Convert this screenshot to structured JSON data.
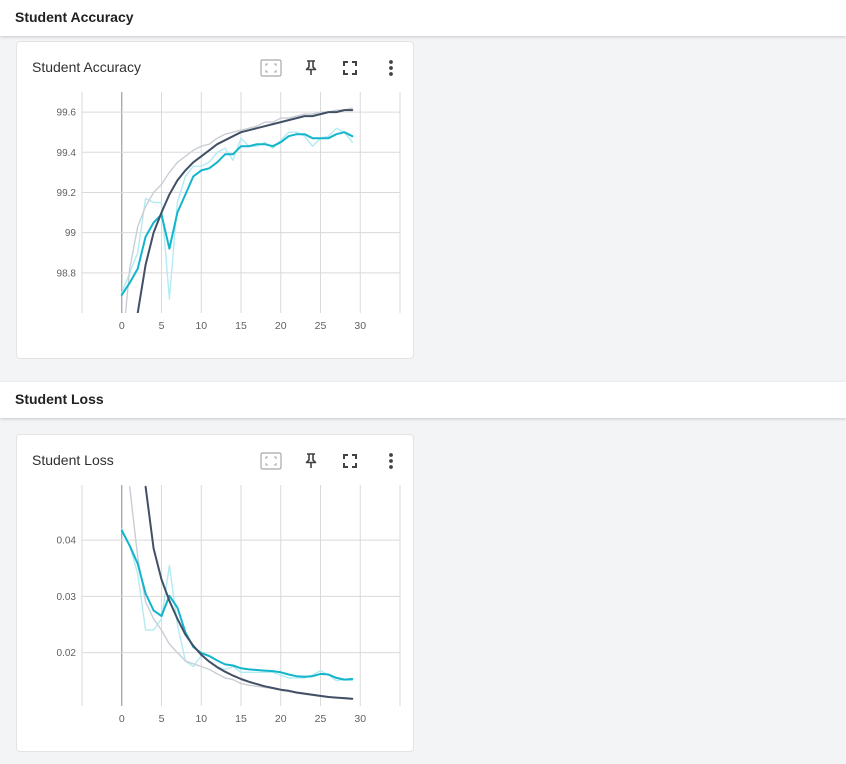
{
  "sections": [
    {
      "title": "Student Accuracy",
      "card": {
        "title": "Student Accuracy",
        "tools": {
          "fit_icon": "fit-domain-icon",
          "pin_icon": "pin-icon",
          "fullscreen_icon": "fullscreen-icon",
          "more_icon": "more-vert-icon"
        }
      }
    },
    {
      "title": "Student Loss",
      "card": {
        "title": "Student Loss",
        "tools": {
          "fit_icon": "fit-domain-icon",
          "pin_icon": "pin-icon",
          "fullscreen_icon": "fullscreen-icon",
          "more_icon": "more-vert-icon"
        }
      }
    }
  ],
  "colors": {
    "teal": "#12b5cb",
    "teal_raw": "#b2ebf2",
    "navy": "#425066",
    "navy_raw": "#c9ced6",
    "grid": "#dadada",
    "zero_axis": "#9e9e9e"
  },
  "chart_data": [
    {
      "type": "line",
      "title": "Student Accuracy",
      "xlabel": "",
      "ylabel": "",
      "x_ticks": [
        0,
        5,
        10,
        15,
        20,
        25,
        30
      ],
      "y_ticks": [
        98.8,
        99,
        99.2,
        99.4,
        99.6
      ],
      "y_tick_labels": [
        "98.8",
        "99",
        "99.2",
        "99.4",
        "99.6"
      ],
      "xlim": [
        -5,
        35
      ],
      "ylim": [
        98.6,
        99.7
      ],
      "grid": true,
      "series": [
        {
          "color": "#b2ebf2",
          "role": "raw",
          "x": [
            0,
            1,
            2,
            3,
            4,
            5,
            6,
            7,
            8,
            9,
            10,
            11,
            12,
            13,
            14,
            15,
            16,
            17,
            18,
            19,
            20,
            21,
            22,
            23,
            24,
            25,
            26,
            27,
            28,
            29
          ],
          "y": [
            98.7,
            98.8,
            98.9,
            99.17,
            99.15,
            99.15,
            98.67,
            99.15,
            99.28,
            99.33,
            99.33,
            99.35,
            99.4,
            99.42,
            99.36,
            99.47,
            99.43,
            99.43,
            99.45,
            99.42,
            99.46,
            99.5,
            99.5,
            99.48,
            99.43,
            99.47,
            99.48,
            99.52,
            99.5,
            99.45
          ]
        },
        {
          "color": "#c9ced6",
          "role": "raw",
          "x": [
            0,
            1,
            2,
            3,
            4,
            5,
            6,
            7,
            8,
            9,
            10,
            11,
            12,
            13,
            14,
            15,
            16,
            17,
            18,
            19,
            20,
            21,
            22,
            23,
            24,
            25,
            26,
            27,
            28,
            29
          ],
          "y": [
            98.4,
            98.82,
            99.03,
            99.13,
            99.2,
            99.24,
            99.3,
            99.35,
            99.38,
            99.41,
            99.43,
            99.44,
            99.47,
            99.49,
            99.5,
            99.51,
            99.52,
            99.53,
            99.55,
            99.55,
            99.57,
            99.57,
            99.58,
            99.59,
            99.59,
            99.6,
            99.6,
            99.61,
            99.61,
            99.62
          ]
        },
        {
          "color": "#12b5cb",
          "role": "smoothed",
          "x": [
            0,
            1,
            2,
            3,
            4,
            5,
            6,
            7,
            8,
            9,
            10,
            11,
            12,
            13,
            14,
            15,
            16,
            17,
            18,
            19,
            20,
            21,
            22,
            23,
            24,
            25,
            26,
            27,
            28,
            29
          ],
          "y": [
            98.69,
            98.75,
            98.82,
            98.98,
            99.05,
            99.09,
            98.92,
            99.1,
            99.19,
            99.28,
            99.31,
            99.32,
            99.35,
            99.39,
            99.39,
            99.43,
            99.43,
            99.44,
            99.44,
            99.43,
            99.45,
            99.48,
            99.49,
            99.49,
            99.47,
            99.47,
            99.47,
            99.49,
            99.5,
            99.48
          ]
        },
        {
          "color": "#425066",
          "role": "smoothed",
          "x": [
            2,
            3,
            4,
            5,
            6,
            7,
            8,
            9,
            10,
            11,
            12,
            13,
            14,
            15,
            16,
            17,
            18,
            19,
            20,
            21,
            22,
            23,
            24,
            25,
            26,
            27,
            28,
            29
          ],
          "y": [
            98.6,
            98.84,
            99.0,
            99.1,
            99.19,
            99.26,
            99.31,
            99.35,
            99.38,
            99.41,
            99.44,
            99.46,
            99.48,
            99.5,
            99.51,
            99.52,
            99.53,
            99.54,
            99.55,
            99.56,
            99.57,
            99.58,
            99.58,
            99.59,
            99.6,
            99.6,
            99.61,
            99.61
          ]
        }
      ]
    },
    {
      "type": "line",
      "title": "Student Loss",
      "xlabel": "",
      "ylabel": "",
      "x_ticks": [
        0,
        5,
        10,
        15,
        20,
        25,
        30
      ],
      "y_ticks": [
        0.02,
        0.03,
        0.04
      ],
      "y_tick_labels": [
        "0.02",
        "0.03",
        "0.04"
      ],
      "xlim": [
        -5,
        35
      ],
      "ylim": [
        0.0105,
        0.0498
      ],
      "grid": true,
      "series": [
        {
          "color": "#b2ebf2",
          "role": "raw",
          "x": [
            0,
            1,
            2,
            3,
            4,
            5,
            6,
            7,
            8,
            9,
            10,
            11,
            12,
            13,
            14,
            15,
            16,
            17,
            18,
            19,
            20,
            21,
            22,
            23,
            24,
            25,
            26,
            27,
            28,
            29
          ],
          "y": [
            0.042,
            0.039,
            0.034,
            0.024,
            0.024,
            0.026,
            0.0355,
            0.025,
            0.0185,
            0.0175,
            0.0195,
            0.0185,
            0.0175,
            0.017,
            0.0175,
            0.0165,
            0.0165,
            0.0165,
            0.0165,
            0.0165,
            0.016,
            0.0155,
            0.0155,
            0.0155,
            0.016,
            0.0168,
            0.016,
            0.015,
            0.0152,
            0.015
          ]
        },
        {
          "color": "#c9ced6",
          "role": "raw",
          "x": [
            1,
            2,
            3,
            4,
            5,
            6,
            7,
            8,
            9,
            10,
            11,
            12,
            13,
            14,
            15,
            16,
            17,
            18,
            19,
            20,
            21,
            22,
            23,
            24,
            25,
            26,
            27,
            28,
            29
          ],
          "y": [
            0.0495,
            0.037,
            0.029,
            0.026,
            0.024,
            0.0215,
            0.02,
            0.0185,
            0.018,
            0.0175,
            0.017,
            0.0162,
            0.0155,
            0.0152,
            0.0145,
            0.0142,
            0.014,
            0.0138,
            0.0136,
            0.0133,
            0.0131,
            0.0128,
            0.0126,
            0.0124,
            0.0122,
            0.0121,
            0.012,
            0.0118,
            0.0117
          ]
        },
        {
          "color": "#12b5cb",
          "role": "smoothed",
          "x": [
            0,
            1,
            2,
            3,
            4,
            5,
            6,
            7,
            8,
            9,
            10,
            11,
            12,
            13,
            14,
            15,
            16,
            17,
            18,
            19,
            20,
            21,
            22,
            23,
            24,
            25,
            26,
            27,
            28,
            29
          ],
          "y": [
            0.0417,
            0.039,
            0.0358,
            0.0305,
            0.0275,
            0.0265,
            0.0301,
            0.028,
            0.0236,
            0.021,
            0.0199,
            0.0194,
            0.0186,
            0.0179,
            0.0177,
            0.0172,
            0.017,
            0.0169,
            0.0168,
            0.0167,
            0.0165,
            0.0161,
            0.0158,
            0.0157,
            0.0158,
            0.0162,
            0.0161,
            0.0155,
            0.0152,
            0.0153
          ]
        },
        {
          "color": "#425066",
          "role": "smoothed",
          "x": [
            3,
            4,
            5,
            6,
            7,
            8,
            9,
            10,
            11,
            12,
            13,
            14,
            15,
            16,
            17,
            18,
            19,
            20,
            21,
            22,
            23,
            24,
            25,
            26,
            27,
            28,
            29
          ],
          "y": [
            0.0495,
            0.0385,
            0.033,
            0.0292,
            0.026,
            0.0232,
            0.0212,
            0.0196,
            0.0184,
            0.0174,
            0.0166,
            0.0159,
            0.0153,
            0.0148,
            0.0144,
            0.014,
            0.0137,
            0.0134,
            0.0132,
            0.0129,
            0.0127,
            0.0125,
            0.0123,
            0.0121,
            0.012,
            0.0119,
            0.0118
          ]
        }
      ]
    }
  ]
}
